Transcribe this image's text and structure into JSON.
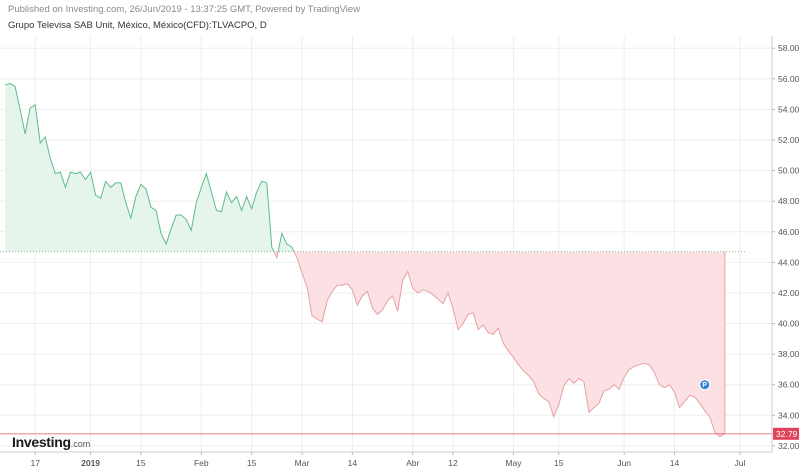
{
  "header": {
    "published": "Published on Investing.com, 26/Jun/2019 - 13:37:25 GMT, Powered by TradingView",
    "symbol": "Grupo Televisa SAB Unit, México, México(CFD):TLVACPO, D"
  },
  "logo": {
    "name": "Investing",
    "domain": ".com"
  },
  "colors": {
    "up_line": "#5dbb8a",
    "up_fill": "#e6f5ec",
    "down_line": "#e8a0a6",
    "down_fill": "#fbe1e3",
    "baseline": "#7dbb93",
    "last_price_line": "#e26a7b",
    "last_price_badge": "#e0435a",
    "grid": "#eeeeee",
    "marker": "#2f83d6"
  },
  "chart_data": {
    "type": "area",
    "title": "Grupo Televisa SAB Unit, México, México(CFD):TLVACPO, D",
    "xlabel": "",
    "ylabel": "",
    "ylim": [
      31.6,
      58.8
    ],
    "yticks": [
      "32.00",
      "34.00",
      "36.00",
      "38.00",
      "40.00",
      "42.00",
      "44.00",
      "46.00",
      "48.00",
      "50.00",
      "52.00",
      "54.00",
      "56.00",
      "58.00"
    ],
    "xticks": [
      {
        "label": "17",
        "index": 6
      },
      {
        "label": "2019",
        "index": 17,
        "bold": true
      },
      {
        "label": "15",
        "index": 27
      },
      {
        "label": "Feb",
        "index": 39
      },
      {
        "label": "15",
        "index": 49
      },
      {
        "label": "Mar",
        "index": 59
      },
      {
        "label": "14",
        "index": 69
      },
      {
        "label": "Abr",
        "index": 81
      },
      {
        "label": "12",
        "index": 89
      },
      {
        "label": "May",
        "index": 101
      },
      {
        "label": "15",
        "index": 110
      },
      {
        "label": "Jun",
        "index": 123
      },
      {
        "label": "14",
        "index": 133
      },
      {
        "label": "Jul",
        "index": 146
      }
    ],
    "baseline": 44.7,
    "last_price": 32.79,
    "last_price_label": "32.79",
    "grid": true,
    "series": [
      {
        "values": [
          55.6,
          55.7,
          55.5,
          54.0,
          52.4,
          54.1,
          54.3,
          51.8,
          52.2,
          50.8,
          49.8,
          49.9,
          48.9,
          49.9,
          49.8,
          49.9,
          49.4,
          49.9,
          48.4,
          48.2,
          49.3,
          48.9,
          49.2,
          49.2,
          47.9,
          46.9,
          48.3,
          49.1,
          48.8,
          47.6,
          47.4,
          45.9,
          45.2,
          46.2,
          47.1,
          47.1,
          46.8,
          46.1,
          47.9,
          48.9,
          49.8,
          48.6,
          47.4,
          47.3,
          48.6,
          47.9,
          48.3,
          47.4,
          48.3,
          47.5,
          48.6,
          49.3,
          49.2,
          45.0,
          44.3,
          45.9,
          45.2,
          45.0,
          44.3,
          43.3,
          42.4,
          40.5,
          40.3,
          40.1,
          41.5,
          42.1,
          42.5,
          42.5,
          42.6,
          42.2,
          41.2,
          41.8,
          42.1,
          41.0,
          40.6,
          40.9,
          41.5,
          41.8,
          40.8,
          42.8,
          43.4,
          42.3,
          42.0,
          42.2,
          42.1,
          41.9,
          41.6,
          41.3,
          42.0,
          41.0,
          39.6,
          40.0,
          40.6,
          40.7,
          39.6,
          39.9,
          39.4,
          39.3,
          39.7,
          38.7,
          38.2,
          37.8,
          37.3,
          36.9,
          36.6,
          36.2,
          35.4,
          35.1,
          34.9,
          33.9,
          34.7,
          35.9,
          36.4,
          36.1,
          36.4,
          36.2,
          34.2,
          34.5,
          34.8,
          35.6,
          35.7,
          36.0,
          35.7,
          36.5,
          37.0,
          37.2,
          37.3,
          37.4,
          37.3,
          36.8,
          36.0,
          35.8,
          36.0,
          35.5,
          34.5,
          34.9,
          35.3,
          35.2,
          34.8,
          34.3,
          33.9,
          32.9,
          32.6,
          32.79
        ]
      }
    ]
  }
}
